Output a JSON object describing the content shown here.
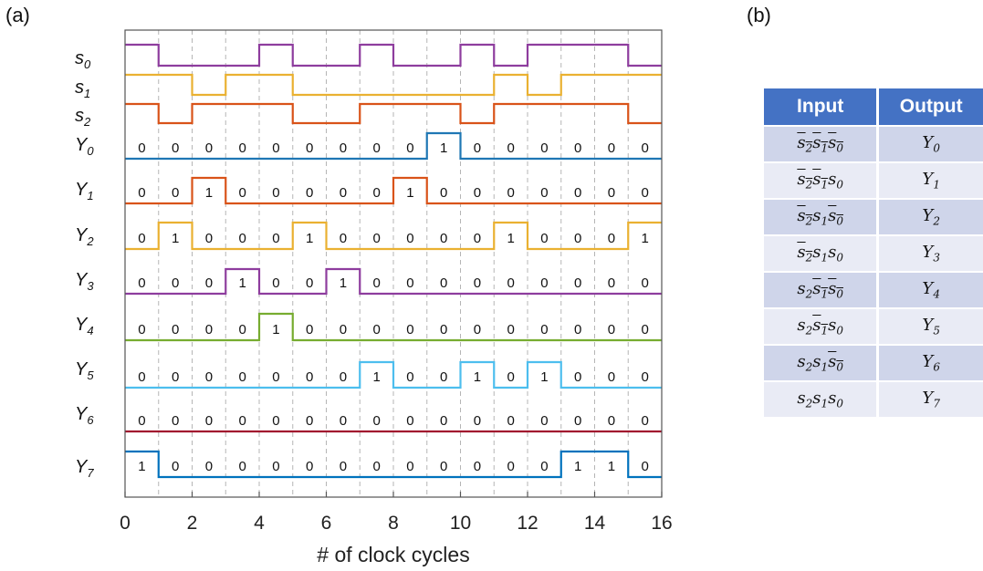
{
  "panel_labels": {
    "a": "(a)",
    "b": "(b)"
  },
  "chart_data": {
    "type": "line",
    "xlabel": "#  of clock cycles",
    "xlim": [
      0,
      16
    ],
    "x_ticks": [
      0,
      2,
      4,
      6,
      8,
      10,
      12,
      14,
      16
    ],
    "grid": true,
    "digital_inputs": [
      {
        "name": "s0",
        "color": "#8e3d9e",
        "levels": [
          1,
          0,
          0,
          0,
          1,
          0,
          0,
          1,
          0,
          0,
          1,
          0,
          1,
          1,
          1,
          0
        ]
      },
      {
        "name": "s1",
        "color": "#eab131",
        "levels": [
          1,
          1,
          0,
          1,
          1,
          0,
          0,
          0,
          0,
          0,
          0,
          1,
          0,
          1,
          1,
          1
        ]
      },
      {
        "name": "s2",
        "color": "#d95319",
        "levels": [
          1,
          0,
          1,
          1,
          1,
          0,
          0,
          1,
          1,
          1,
          0,
          1,
          1,
          1,
          1,
          0
        ]
      }
    ],
    "outputs": [
      {
        "name": "Y0",
        "color": "#1f77b4",
        "bits": [
          0,
          0,
          0,
          0,
          0,
          0,
          0,
          0,
          0,
          1,
          0,
          0,
          0,
          0,
          0,
          0
        ]
      },
      {
        "name": "Y1",
        "color": "#d95319",
        "bits": [
          0,
          0,
          1,
          0,
          0,
          0,
          0,
          0,
          1,
          0,
          0,
          0,
          0,
          0,
          0,
          0
        ]
      },
      {
        "name": "Y2",
        "color": "#eab131",
        "bits": [
          0,
          1,
          0,
          0,
          0,
          1,
          0,
          0,
          0,
          0,
          0,
          1,
          0,
          0,
          0,
          1
        ]
      },
      {
        "name": "Y3",
        "color": "#8e3d9e",
        "bits": [
          0,
          0,
          0,
          1,
          0,
          0,
          1,
          0,
          0,
          0,
          0,
          0,
          0,
          0,
          0,
          0
        ]
      },
      {
        "name": "Y4",
        "color": "#77ac30",
        "bits": [
          0,
          0,
          0,
          0,
          1,
          0,
          0,
          0,
          0,
          0,
          0,
          0,
          0,
          0,
          0,
          0
        ]
      },
      {
        "name": "Y5",
        "color": "#4dbeee",
        "bits": [
          0,
          0,
          0,
          0,
          0,
          0,
          0,
          1,
          0,
          0,
          1,
          0,
          1,
          0,
          0,
          0
        ]
      },
      {
        "name": "Y6",
        "color": "#a2142f",
        "bits": [
          0,
          0,
          0,
          0,
          0,
          0,
          0,
          0,
          0,
          0,
          0,
          0,
          0,
          0,
          0,
          0
        ]
      },
      {
        "name": "Y7",
        "color": "#0072bd",
        "bits": [
          1,
          0,
          0,
          0,
          0,
          0,
          0,
          0,
          0,
          0,
          0,
          0,
          0,
          1,
          1,
          0
        ]
      }
    ]
  },
  "truth_table": {
    "headers": [
      "Input",
      "Output"
    ],
    "rows": [
      {
        "input": "s̄2s̄1s̄0",
        "output": "Y0"
      },
      {
        "input": "s̄2s̄1s0",
        "output": "Y1"
      },
      {
        "input": "s̄2s1s̄0",
        "output": "Y2"
      },
      {
        "input": "s̄2s1s0",
        "output": "Y3"
      },
      {
        "input": "s2s̄1s̄0",
        "output": "Y4"
      },
      {
        "input": "s2s̄1s0",
        "output": "Y5"
      },
      {
        "input": "s2s1s̄0",
        "output": "Y6"
      },
      {
        "input": "s2s1s0",
        "output": "Y7"
      }
    ],
    "header_color": "#4472c4"
  }
}
